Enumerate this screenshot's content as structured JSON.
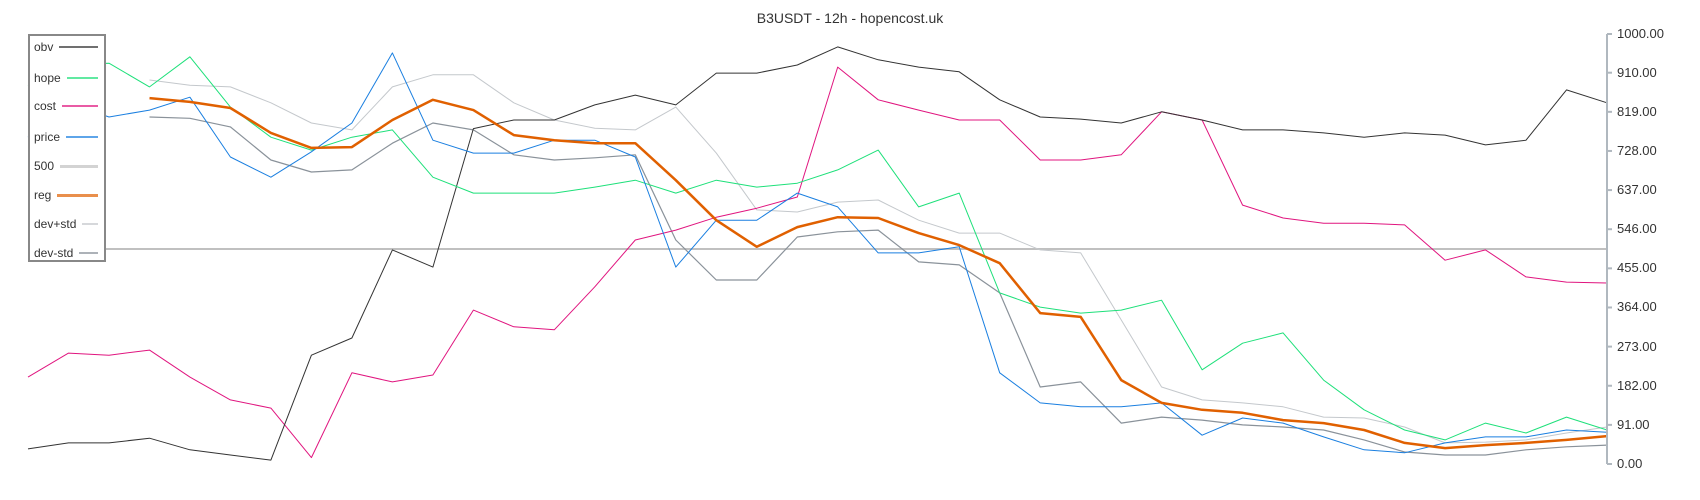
{
  "chart_data": {
    "type": "line",
    "title": "B3USDT - 12h - hopencost.uk",
    "ylim": [
      0,
      1000
    ],
    "y_ticks": [
      "1000.00",
      "910.00",
      "819.00",
      "728.00",
      "637.00",
      "546.00",
      "455.00",
      "364.00",
      "273.00",
      "182.00",
      "91.00",
      "0.00"
    ],
    "y_axis_position": "right",
    "legend_position": "top-left",
    "grid": false,
    "series": [
      {
        "name": "obv",
        "color": "#333333",
        "width": 1,
        "values": [
          35,
          49,
          49,
          60,
          33,
          21,
          9,
          253,
          293,
          498,
          458,
          780,
          800,
          800,
          835,
          858,
          835,
          909,
          909,
          928,
          970,
          940,
          923,
          912,
          847,
          807,
          802,
          793,
          819,
          800,
          777,
          777,
          770,
          760,
          770,
          765,
          742,
          753,
          870,
          840
        ]
      },
      {
        "name": "hope",
        "color": "#1ee07a",
        "width": 1,
        "values": [
          880,
          930,
          932,
          877,
          947,
          830,
          760,
          730,
          760,
          777,
          667,
          630,
          630,
          630,
          644,
          660,
          630,
          660,
          644,
          653,
          684,
          730,
          598,
          630,
          398,
          365,
          351,
          358,
          381,
          219,
          281,
          305,
          195,
          126,
          79,
          56,
          95,
          72,
          109,
          79
        ]
      },
      {
        "name": "cost",
        "color": "#e0157f",
        "width": 1,
        "values": [
          202,
          258,
          253,
          265,
          202,
          149,
          130,
          15,
          212,
          191,
          207,
          358,
          319,
          312,
          412,
          521,
          544,
          574,
          595,
          621,
          923,
          847,
          823,
          800,
          800,
          707,
          707,
          719,
          819,
          800,
          602,
          572,
          560,
          560,
          556,
          474,
          498,
          435,
          423,
          421
        ]
      },
      {
        "name": "price",
        "color": "#1a7fe0",
        "width": 1,
        "values": [
          760,
          840,
          807,
          823,
          853,
          714,
          667,
          726,
          793,
          956,
          753,
          723,
          723,
          753,
          753,
          714,
          458,
          567,
          567,
          630,
          598,
          491,
          491,
          505,
          212,
          142,
          133,
          133,
          142,
          67,
          107,
          95,
          63,
          33,
          26,
          49,
          63,
          63,
          79,
          74
        ]
      },
      {
        "name": "500",
        "color": "#c0c0c0",
        "width": 2,
        "constant": 500
      },
      {
        "name": "reg",
        "color": "#e06000",
        "width": 2.5,
        "values": [
          null,
          null,
          null,
          851,
          842,
          828,
          770,
          735,
          737,
          800,
          847,
          823,
          765,
          753,
          746,
          746,
          660,
          567,
          505,
          551,
          574,
          572,
          537,
          509,
          467,
          351,
          342,
          195,
          142,
          126,
          119,
          102,
          95,
          79,
          49,
          37,
          44,
          49,
          56,
          65
        ]
      },
      {
        "name": "dev+std",
        "color": "#c4c8cc",
        "width": 1,
        "values": [
          null,
          null,
          null,
          893,
          881,
          877,
          840,
          793,
          777,
          877,
          905,
          905,
          840,
          800,
          781,
          777,
          830,
          723,
          591,
          586,
          609,
          614,
          567,
          537,
          537,
          498,
          491,
          335,
          179,
          149,
          142,
          133,
          109,
          107,
          86,
          49,
          51,
          56,
          72,
          86
        ]
      },
      {
        "name": "dev-std",
        "color": "#8a929a",
        "width": 1.2,
        "values": [
          null,
          null,
          null,
          807,
          804,
          784,
          707,
          679,
          684,
          746,
          793,
          777,
          719,
          707,
          712,
          719,
          521,
          428,
          428,
          528,
          540,
          544,
          470,
          463,
          398,
          179,
          191,
          95,
          109,
          102,
          91,
          86,
          79,
          56,
          28,
          21,
          21,
          33,
          40,
          44
        ]
      }
    ]
  }
}
